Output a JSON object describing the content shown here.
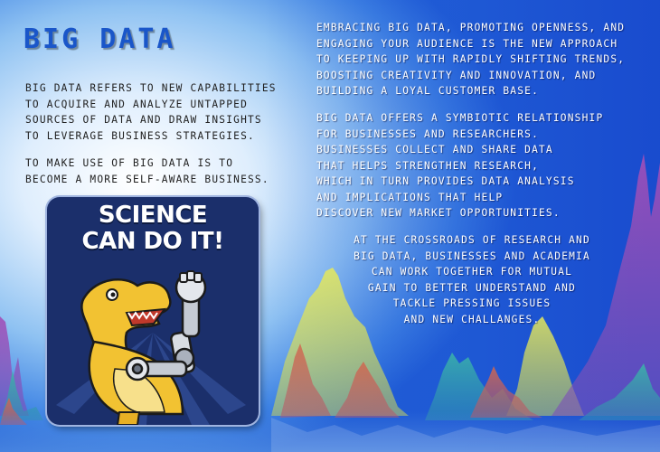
{
  "title": "BIG DATA",
  "left": {
    "paragraph1": "BIG DATA REFERS TO NEW CAPABILITIES\nTO ACQUIRE AND ANALYZE UNTAPPED\nSOURCES OF DATA AND DRAW INSIGHTS\nTO LEVERAGE BUSINESS STRATEGIES.",
    "paragraph2": "TO MAKE USE OF BIG DATA IS TO\nBECOME A MORE SELF-AWARE BUSINESS."
  },
  "right": {
    "paragraph1": "EMBRACING BIG DATA, PROMOTING OPENNESS, AND\nENGAGING YOUR AUDIENCE IS THE NEW APPROACH\nTO KEEPING UP WITH RAPIDLY SHIFTING TRENDS,\nBOOSTING CREATIVITY AND INNOVATION, AND\nBUILDING A LOYAL CUSTOMER BASE.",
    "paragraph2": "BIG DATA OFFERS A SYMBIOTIC RELATIONSHIP\nFOR BUSINESSES AND RESEARCHERS.\nBUSINESSES COLLECT AND SHARE DATA\nTHAT HELPS STRENGTHEN RESEARCH,\nWHICH IN TURN PROVIDES DATA ANALYSIS\nAND IMPLICATIONS THAT HELP\nDISCOVER NEW MARKET OPPORTUNITIES.",
    "paragraph3": "AT THE CROSSROADS OF RESEARCH AND\nBIG DATA, BUSINESSES AND ACADEMIA\nCAN WORK TOGETHER FOR MUTUAL\nGAIN TO BETTER UNDERSTAND AND\nTACKLE PRESSING ISSUES\nAND NEW CHALLANGES."
  },
  "poster": {
    "headline": "SCIENCE\nCAN DO IT!",
    "icon": "t-rex-robot-arm-illustration"
  },
  "colors": {
    "title": "#1a56c9",
    "background_blue": "#1f5ed6",
    "poster_bg": "#1b2f6b",
    "dino": "#f2c232"
  }
}
